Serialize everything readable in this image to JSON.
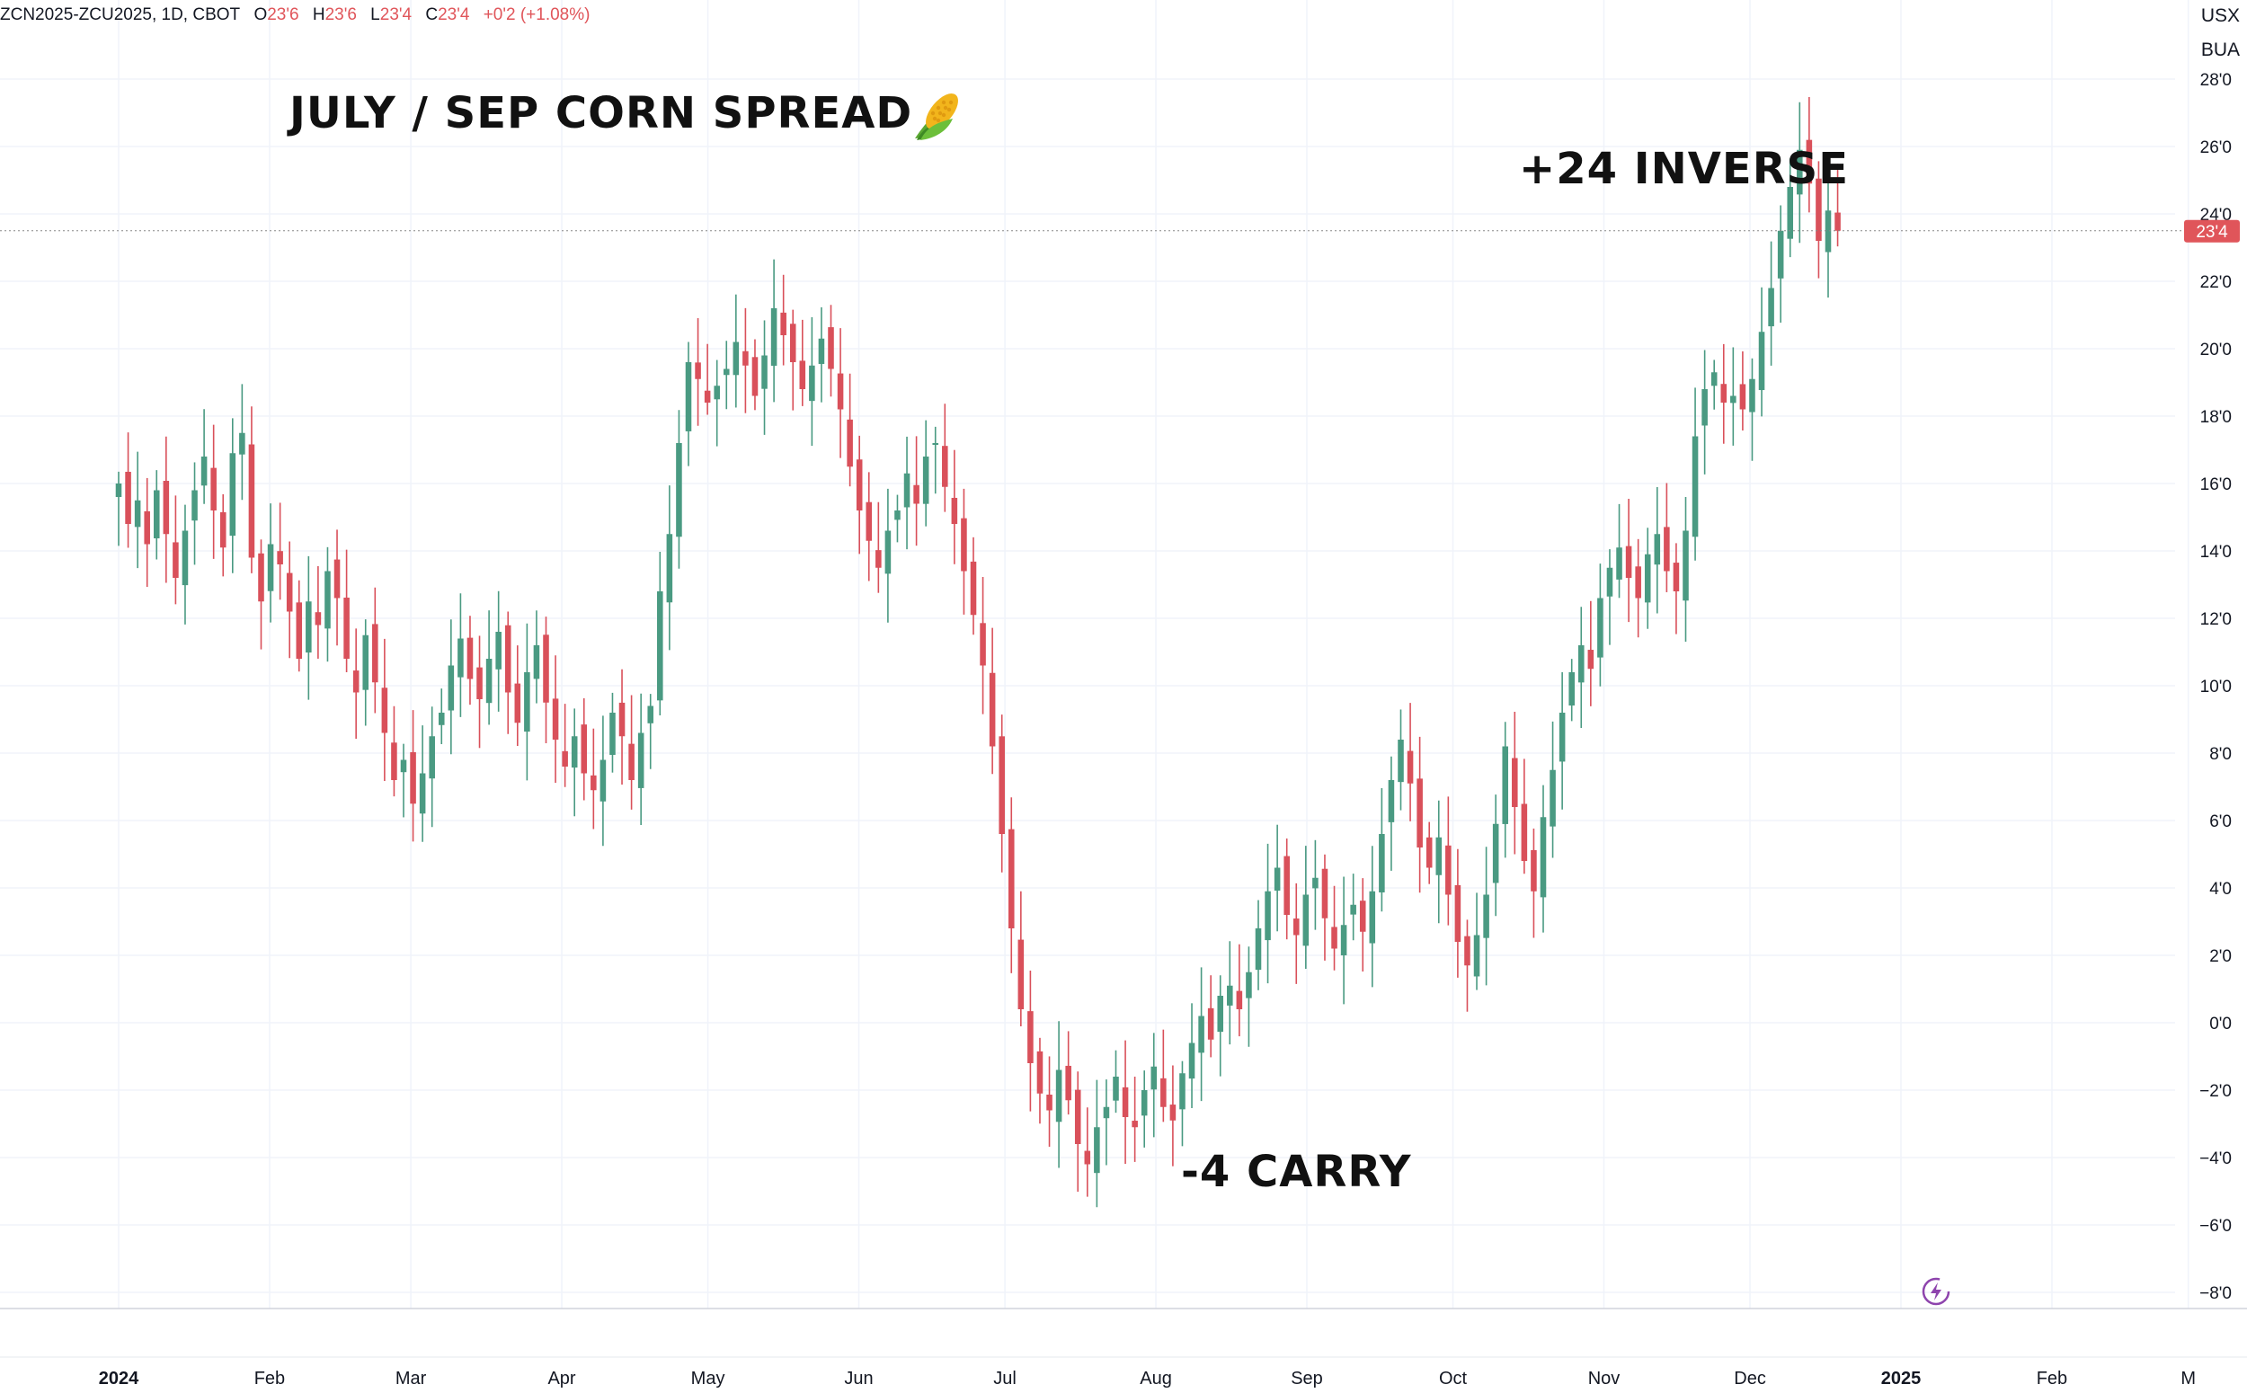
{
  "header": {
    "symbol": "ZCN2025-ZCU2025, 1D, CBOT",
    "open_label": "O",
    "open_value": "23'6",
    "high_label": "H",
    "high_value": "23'6",
    "low_label": "L",
    "low_value": "23'4",
    "close_label": "C",
    "close_value": "23'4",
    "change": "+0'2 (+1.08%)"
  },
  "currency": {
    "unit_top": "USX",
    "unit_bottom": "BUA"
  },
  "annotations": {
    "title": "JULY / SEP CORN SPREAD",
    "title_icon": "corn-icon",
    "high_note": "+24 INVERSE",
    "low_note": "-4 CARRY"
  },
  "colors": {
    "up": "#4a9a82",
    "down": "#d9505a",
    "grid": "#f0f3fa",
    "axis_text": "#131722",
    "price_tag": "#e0555a",
    "bolt": "#8e44ad"
  },
  "chart_data": {
    "type": "candlestick",
    "title": "JULY / SEP CORN SPREAD",
    "instrument": "ZCN2025-ZCU2025",
    "interval": "1D",
    "exchange": "CBOT",
    "y_unit": "USX/BUA",
    "ylim": [
      -9,
      29
    ],
    "y_ticks": [
      -8,
      -6,
      -4,
      -2,
      0,
      2,
      4,
      6,
      8,
      10,
      12,
      14,
      16,
      18,
      20,
      22,
      24,
      26,
      28
    ],
    "y_tick_labels": [
      "−8'0",
      "−6'0",
      "−4'0",
      "−2'0",
      "0'0",
      "2'0",
      "4'0",
      "6'0",
      "8'0",
      "10'0",
      "12'0",
      "14'0",
      "16'0",
      "18'0",
      "20'0",
      "22'0",
      "24'0",
      "26'0",
      "28'0"
    ],
    "x_labels": [
      {
        "label": "2024",
        "day": 0,
        "bold": true
      },
      {
        "label": "Feb",
        "day": 31
      },
      {
        "label": "Mar",
        "day": 60
      },
      {
        "label": "Apr",
        "day": 91
      },
      {
        "label": "May",
        "day": 121
      },
      {
        "label": "Jun",
        "day": 152
      },
      {
        "label": "Jul",
        "day": 182
      },
      {
        "label": "Aug",
        "day": 213
      },
      {
        "label": "Sep",
        "day": 244
      },
      {
        "label": "Oct",
        "day": 274
      },
      {
        "label": "Nov",
        "day": 305
      },
      {
        "label": "Dec",
        "day": 335
      },
      {
        "label": "2025",
        "day": 366,
        "bold": true
      },
      {
        "label": "Feb",
        "day": 397
      },
      {
        "label": "M",
        "day": 425
      }
    ],
    "x_range_days": [
      -22,
      436
    ],
    "last_price": 23.5,
    "last_price_label": "23'4",
    "closes": [
      16,
      14.8,
      15.5,
      14.2,
      15.8,
      14.5,
      13.2,
      14.6,
      15.8,
      16.8,
      15.2,
      14.1,
      16.9,
      17.5,
      13.8,
      12.5,
      14.2,
      13.6,
      12.2,
      10.8,
      12.5,
      11.8,
      13.4,
      12.6,
      10.8,
      9.8,
      11.5,
      10.1,
      8.6,
      7.2,
      7.8,
      6.5,
      7.4,
      8.5,
      9.2,
      10.6,
      11.4,
      10.2,
      9.6,
      10.8,
      11.6,
      9.8,
      8.9,
      10.4,
      11.2,
      9.5,
      8.4,
      7.6,
      8.5,
      7.4,
      6.9,
      7.8,
      9.2,
      8.5,
      7.2,
      8.6,
      9.4,
      12.8,
      14.5,
      17.2,
      19.6,
      19.1,
      18.4,
      18.9,
      19.4,
      20.2,
      19.5,
      18.6,
      19.8,
      21.2,
      20.4,
      19.6,
      18.8,
      19.5,
      20.3,
      19.4,
      18.2,
      16.5,
      15.2,
      14.3,
      13.5,
      14.6,
      15.2,
      16.3,
      15.4,
      16.8,
      17.2,
      15.9,
      14.8,
      13.4,
      12.1,
      10.6,
      8.2,
      5.6,
      2.8,
      0.4,
      -1.2,
      -2.1,
      -2.6,
      -1.4,
      -2.3,
      -3.6,
      -4.2,
      -3.1,
      -2.5,
      -1.6,
      -2.8,
      -3.1,
      -2.0,
      -1.3,
      -2.5,
      -2.9,
      -1.5,
      -0.6,
      0.2,
      -0.5,
      0.8,
      1.1,
      0.4,
      1.5,
      2.8,
      3.9,
      4.6,
      3.2,
      2.6,
      3.8,
      4.3,
      3.1,
      2.2,
      2.9,
      3.5,
      2.7,
      3.9,
      5.6,
      7.2,
      8.4,
      7.1,
      5.2,
      4.6,
      5.5,
      3.8,
      2.4,
      1.7,
      2.6,
      3.8,
      5.9,
      8.2,
      6.4,
      4.8,
      3.9,
      6.1,
      7.5,
      9.2,
      10.4,
      11.2,
      10.5,
      12.6,
      13.5,
      14.1,
      13.2,
      12.6,
      13.9,
      14.5,
      13.4,
      12.8,
      14.6,
      17.4,
      18.8,
      19.3,
      18.4,
      18.6,
      18.2,
      19.1,
      20.5,
      21.8,
      23.5,
      24.8,
      25.9,
      24.9,
      23.2,
      24.1,
      23.5
    ],
    "x_start_day": 0,
    "x_end_day": 353
  }
}
